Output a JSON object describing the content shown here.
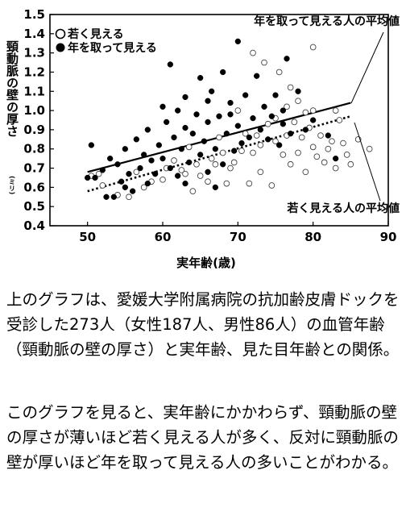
{
  "chart_data": {
    "type": "scatter",
    "ylabel": "頸動脈の壁の厚さ",
    "ylabel_unit": "(ミリ)",
    "xlabel": "実年齢(歳)",
    "xlim": [
      45,
      90
    ],
    "ylim": [
      0.4,
      1.5
    ],
    "x_ticks": [
      50,
      60,
      70,
      80,
      90
    ],
    "y_ticks": [
      "0.4",
      "0.5",
      "0.6",
      "0.7",
      "0.8",
      "0.9",
      "1.0",
      "1.1",
      "1.2",
      "1.3",
      "1.4",
      "1.5"
    ],
    "legend": {
      "placement": "top-left",
      "young_label": "若く見える",
      "old_label": "年を取って見える"
    },
    "annotations": {
      "old_avg": "年を取って見える人の平均値",
      "young_avg": "若く見える人の平均値"
    },
    "series": [
      {
        "name": "若く見える",
        "marker": "open-circle",
        "points": [
          [
            50.5,
            0.66
          ],
          [
            51.5,
            0.67
          ],
          [
            52,
            0.61
          ],
          [
            54,
            0.56
          ],
          [
            55.5,
            0.55
          ],
          [
            56.5,
            0.68
          ],
          [
            57.5,
            0.6
          ],
          [
            58.5,
            0.63
          ],
          [
            60,
            0.64
          ],
          [
            60.5,
            0.7
          ],
          [
            61.5,
            0.74
          ],
          [
            62.5,
            0.69
          ],
          [
            63,
            0.67
          ],
          [
            63.5,
            0.81
          ],
          [
            64,
            0.58
          ],
          [
            64.5,
            0.72
          ],
          [
            65,
            0.66
          ],
          [
            66,
            0.63
          ],
          [
            66.5,
            0.75
          ],
          [
            67,
            0.72
          ],
          [
            67.5,
            0.86
          ],
          [
            68,
            0.78
          ],
          [
            68.5,
            0.62
          ],
          [
            69,
            0.7
          ],
          [
            69.5,
            0.73
          ],
          [
            70,
            1.0
          ],
          [
            70.5,
            0.79
          ],
          [
            71,
            0.88
          ],
          [
            71.5,
            0.62
          ],
          [
            72,
            0.78
          ],
          [
            72,
            1.3
          ],
          [
            72.5,
            0.87
          ],
          [
            73,
            0.68
          ],
          [
            73,
            0.82
          ],
          [
            73.5,
            1.25
          ],
          [
            74,
            0.93
          ],
          [
            74.5,
            0.61
          ],
          [
            75,
            0.84
          ],
          [
            75,
            0.96
          ],
          [
            75.5,
            1.2
          ],
          [
            76,
            0.77
          ],
          [
            76.5,
            0.87
          ],
          [
            76.5,
            1.02
          ],
          [
            77,
            0.72
          ],
          [
            77,
            1.12
          ],
          [
            77.5,
            0.94
          ],
          [
            78,
            0.78
          ],
          [
            78,
            1.05
          ],
          [
            78.5,
            0.86
          ],
          [
            79,
            0.68
          ],
          [
            79,
            0.99
          ],
          [
            79.5,
            0.91
          ],
          [
            80,
            0.81
          ],
          [
            80,
            1.0
          ],
          [
            80.5,
            0.76
          ],
          [
            81,
            0.87
          ],
          [
            81.5,
            0.73
          ],
          [
            82,
            0.8
          ],
          [
            82.5,
            0.84
          ],
          [
            83,
            0.7
          ],
          [
            83,
            1.0
          ],
          [
            83.5,
            0.95
          ],
          [
            84,
            0.83
          ],
          [
            84.5,
            0.77
          ],
          [
            85,
            0.72
          ],
          [
            86,
            0.85
          ],
          [
            87.5,
            0.8
          ],
          [
            80,
            1.33
          ]
        ]
      },
      {
        "name": "年を取って見える",
        "marker": "filled-circle",
        "points": [
          [
            50,
            0.65
          ],
          [
            50.5,
            0.82
          ],
          [
            51,
            0.65
          ],
          [
            52,
            0.69
          ],
          [
            52.5,
            0.55
          ],
          [
            53,
            0.75
          ],
          [
            53.5,
            0.55
          ],
          [
            54,
            0.72
          ],
          [
            54.5,
            0.63
          ],
          [
            55,
            0.8
          ],
          [
            55.5,
            0.67
          ],
          [
            56,
            0.58
          ],
          [
            56.5,
            0.85
          ],
          [
            57,
            0.7
          ],
          [
            57.5,
            0.77
          ],
          [
            58,
            0.9
          ],
          [
            58.5,
            0.74
          ],
          [
            59,
            0.67
          ],
          [
            59.5,
            0.82
          ],
          [
            60,
            0.75
          ],
          [
            60,
            1.02
          ],
          [
            60.5,
            0.94
          ],
          [
            61,
            0.7
          ],
          [
            61,
            1.24
          ],
          [
            61.5,
            0.86
          ],
          [
            62,
            0.66
          ],
          [
            62,
            1.0
          ],
          [
            62.5,
            0.8
          ],
          [
            63,
            0.91
          ],
          [
            63,
            1.07
          ],
          [
            63.5,
            0.73
          ],
          [
            64,
            0.88
          ],
          [
            64.5,
            0.98
          ],
          [
            65,
            0.77
          ],
          [
            65,
            1.17
          ],
          [
            65.5,
            0.84
          ],
          [
            66,
            0.68
          ],
          [
            66,
            0.94
          ],
          [
            66.5,
            1.1
          ],
          [
            67,
            0.8
          ],
          [
            67.5,
            0.97
          ],
          [
            68,
            0.72
          ],
          [
            68,
            1.2
          ],
          [
            68.5,
            0.88
          ],
          [
            69,
            1.04
          ],
          [
            69.5,
            0.79
          ],
          [
            70,
            0.92
          ],
          [
            70,
            1.36
          ],
          [
            70.5,
            0.83
          ],
          [
            71,
            1.08
          ],
          [
            71.5,
            0.86
          ],
          [
            72,
            0.96
          ],
          [
            72.5,
            1.18
          ],
          [
            73,
            0.9
          ],
          [
            73.5,
            1.02
          ],
          [
            74,
            0.85
          ],
          [
            74.5,
            0.97
          ],
          [
            75,
            1.08
          ],
          [
            75.5,
            0.82
          ],
          [
            76,
            0.93
          ],
          [
            76.5,
            1.27
          ],
          [
            77,
            0.88
          ],
          [
            78,
            1.1
          ],
          [
            79,
            0.9
          ],
          [
            80,
            0.95
          ],
          [
            82,
            0.87
          ],
          [
            83,
            0.75
          ],
          [
            67,
            0.6
          ],
          [
            63,
            0.62
          ],
          [
            58,
            0.62
          ],
          [
            55,
            0.6
          ],
          [
            76,
            1.0
          ],
          [
            69,
            0.98
          ],
          [
            66,
            1.05
          ]
        ]
      }
    ],
    "trend_lines": [
      {
        "name": "年を取って見える人の平均値",
        "style": "solid",
        "x": [
          50,
          85
        ],
        "y": [
          0.68,
          1.04
        ]
      },
      {
        "name": "若く見える人の平均値",
        "style": "dotted",
        "x": [
          50,
          85
        ],
        "y": [
          0.58,
          0.97
        ]
      }
    ]
  },
  "caption": {
    "para1": "上のグラフは、愛媛大学附属病院の抗加齢皮膚ドックを受診した273人（女性187人、男性86人）の血管年齢（頸動脈の壁の厚さ）と実年齢、見た目年齢との関係。",
    "para2": "このグラフを見ると、実年齢にかかわらず、頸動脈の壁の厚さが薄いほど若く見える人が多く、反対に頸動脈の壁が厚いほど年を取って見える人の多いことがわかる。"
  }
}
